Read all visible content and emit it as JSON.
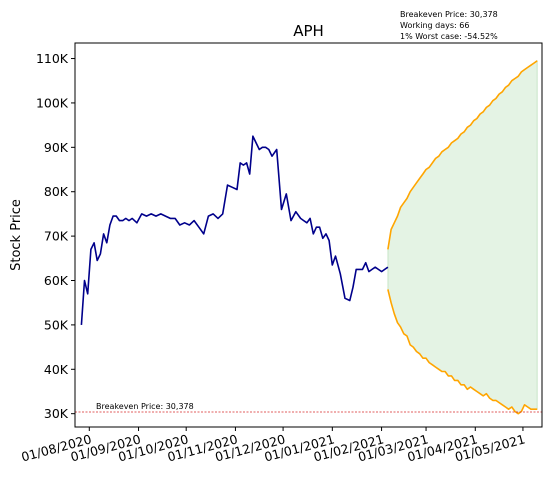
{
  "chart_data": {
    "type": "line",
    "title": "APH",
    "ylabel": "Stock Price",
    "xlabel": "",
    "ylim": [
      27000,
      113500
    ],
    "xlim": [
      "2020-07-23",
      "2021-05-13"
    ],
    "grid": false,
    "yticks": [
      {
        "value": 30000,
        "label": "30K"
      },
      {
        "value": 40000,
        "label": "40K"
      },
      {
        "value": 50000,
        "label": "50K"
      },
      {
        "value": 60000,
        "label": "60K"
      },
      {
        "value": 70000,
        "label": "70K"
      },
      {
        "value": 80000,
        "label": "80K"
      },
      {
        "value": 90000,
        "label": "90K"
      },
      {
        "value": 100000,
        "label": "100K"
      },
      {
        "value": 110000,
        "label": "110K"
      }
    ],
    "xticks": [
      {
        "value": "2020-08-01",
        "label": "01/08/2020"
      },
      {
        "value": "2020-09-01",
        "label": "01/09/2020"
      },
      {
        "value": "2020-10-01",
        "label": "01/10/2020"
      },
      {
        "value": "2020-11-01",
        "label": "01/11/2020"
      },
      {
        "value": "2020-12-01",
        "label": "01/12/2020"
      },
      {
        "value": "2021-01-01",
        "label": "01/01/2021"
      },
      {
        "value": "2021-02-01",
        "label": "01/02/2021"
      },
      {
        "value": "2021-03-01",
        "label": "01/03/2021"
      },
      {
        "value": "2021-04-01",
        "label": "01/04/2021"
      },
      {
        "value": "2021-05-01",
        "label": "01/05/2021"
      }
    ],
    "annotation": {
      "lines": [
        "Breakeven Price: 30,378",
        "Working days: 66",
        "1% Worst case: -54.52%"
      ]
    },
    "breakeven": {
      "value": 30378,
      "label": "Breakeven Price: 30,378",
      "color": "#d62728"
    },
    "history": {
      "color": "#00008b",
      "x": [
        "2020-07-27",
        "2020-07-29",
        "2020-07-31",
        "2020-08-02",
        "2020-08-04",
        "2020-08-06",
        "2020-08-08",
        "2020-08-10",
        "2020-08-12",
        "2020-08-14",
        "2020-08-16",
        "2020-08-18",
        "2020-08-20",
        "2020-08-22",
        "2020-08-24",
        "2020-08-26",
        "2020-08-28",
        "2020-08-31",
        "2020-09-03",
        "2020-09-06",
        "2020-09-09",
        "2020-09-12",
        "2020-09-15",
        "2020-09-18",
        "2020-09-21",
        "2020-09-24",
        "2020-09-27",
        "2020-09-30",
        "2020-10-03",
        "2020-10-06",
        "2020-10-09",
        "2020-10-12",
        "2020-10-15",
        "2020-10-18",
        "2020-10-21",
        "2020-10-24",
        "2020-10-27",
        "2020-10-30",
        "2020-11-02",
        "2020-11-04",
        "2020-11-06",
        "2020-11-08",
        "2020-11-10",
        "2020-11-12",
        "2020-11-14",
        "2020-11-16",
        "2020-11-18",
        "2020-11-20",
        "2020-11-22",
        "2020-11-24",
        "2020-11-27",
        "2020-11-30",
        "2020-12-03",
        "2020-12-06",
        "2020-12-09",
        "2020-12-12",
        "2020-12-14",
        "2020-12-16",
        "2020-12-18",
        "2020-12-20",
        "2020-12-22",
        "2020-12-24",
        "2020-12-26",
        "2020-12-28",
        "2020-12-30",
        "2021-01-01",
        "2021-01-03",
        "2021-01-06",
        "2021-01-09",
        "2021-01-12",
        "2021-01-14",
        "2021-01-16",
        "2021-01-18",
        "2021-01-20",
        "2021-01-22",
        "2021-01-24",
        "2021-01-26",
        "2021-01-28",
        "2021-01-30",
        "2021-02-01",
        "2021-02-03",
        "2021-02-05"
      ],
      "y": [
        50000,
        60000,
        57000,
        67000,
        68500,
        64500,
        66000,
        70500,
        68500,
        72500,
        74500,
        74500,
        73500,
        73500,
        74000,
        73500,
        74000,
        73000,
        75000,
        74500,
        75000,
        74500,
        75000,
        74500,
        74000,
        74000,
        72500,
        73000,
        72500,
        73500,
        72000,
        70500,
        74500,
        75000,
        74000,
        75000,
        81500,
        81000,
        80500,
        86500,
        86000,
        86500,
        84000,
        92500,
        91000,
        89500,
        90000,
        90000,
        89500,
        88000,
        89500,
        76000,
        79500,
        73500,
        75500,
        74000,
        73500,
        73000,
        74000,
        70500,
        72000,
        72000,
        69500,
        70500,
        69000,
        63500,
        65500,
        61500,
        56000,
        55500,
        58500,
        62500,
        62500,
        62500,
        64000,
        62000,
        62500,
        63000,
        62500,
        62000,
        62500,
        63000
      ]
    },
    "forecast_upper": {
      "color": "#ffa500",
      "x": [
        "2021-02-05",
        "2021-02-07",
        "2021-02-09",
        "2021-02-11",
        "2021-02-13",
        "2021-02-15",
        "2021-02-17",
        "2021-02-19",
        "2021-02-21",
        "2021-02-23",
        "2021-02-25",
        "2021-02-27",
        "2021-03-01",
        "2021-03-03",
        "2021-03-05",
        "2021-03-07",
        "2021-03-09",
        "2021-03-11",
        "2021-03-13",
        "2021-03-15",
        "2021-03-17",
        "2021-03-19",
        "2021-03-21",
        "2021-03-23",
        "2021-03-25",
        "2021-03-27",
        "2021-03-29",
        "2021-03-31",
        "2021-04-02",
        "2021-04-04",
        "2021-04-06",
        "2021-04-08",
        "2021-04-10",
        "2021-04-12",
        "2021-04-14",
        "2021-04-16",
        "2021-04-18",
        "2021-04-20",
        "2021-04-22",
        "2021-04-24",
        "2021-04-26",
        "2021-04-28",
        "2021-04-30",
        "2021-05-02",
        "2021-05-04",
        "2021-05-06",
        "2021-05-08",
        "2021-05-10"
      ],
      "y": [
        67000,
        71500,
        73000,
        74500,
        76500,
        77500,
        78500,
        80000,
        81000,
        82000,
        83000,
        84000,
        85000,
        85500,
        86500,
        87500,
        88000,
        89000,
        89500,
        90000,
        91000,
        91500,
        92000,
        93000,
        93500,
        94500,
        95000,
        96000,
        96500,
        97500,
        98000,
        99000,
        99500,
        100500,
        101000,
        102000,
        102500,
        103500,
        104000,
        105000,
        105500,
        106000,
        107000,
        107500,
        108000,
        108500,
        109000,
        109500
      ]
    },
    "forecast_lower": {
      "color": "#ffa500",
      "x": [
        "2021-02-05",
        "2021-02-07",
        "2021-02-09",
        "2021-02-11",
        "2021-02-13",
        "2021-02-15",
        "2021-02-17",
        "2021-02-19",
        "2021-02-21",
        "2021-02-23",
        "2021-02-25",
        "2021-02-27",
        "2021-03-01",
        "2021-03-03",
        "2021-03-05",
        "2021-03-07",
        "2021-03-09",
        "2021-03-11",
        "2021-03-13",
        "2021-03-15",
        "2021-03-17",
        "2021-03-19",
        "2021-03-21",
        "2021-03-23",
        "2021-03-25",
        "2021-03-27",
        "2021-03-29",
        "2021-03-31",
        "2021-04-02",
        "2021-04-04",
        "2021-04-06",
        "2021-04-08",
        "2021-04-10",
        "2021-04-12",
        "2021-04-14",
        "2021-04-16",
        "2021-04-18",
        "2021-04-20",
        "2021-04-22",
        "2021-04-24",
        "2021-04-26",
        "2021-04-28",
        "2021-04-30",
        "2021-05-02",
        "2021-05-04",
        "2021-05-06",
        "2021-05-08",
        "2021-05-10"
      ],
      "y": [
        58000,
        55000,
        52500,
        50500,
        49500,
        48000,
        47500,
        45500,
        45000,
        44000,
        43500,
        42500,
        42500,
        41500,
        41000,
        40500,
        40000,
        39500,
        39500,
        38500,
        38500,
        37500,
        37500,
        36500,
        36500,
        35500,
        36000,
        35500,
        35000,
        34500,
        34000,
        34500,
        33500,
        33000,
        33000,
        32500,
        32000,
        31500,
        31000,
        31500,
        30500,
        30000,
        30500,
        32000,
        31500,
        31000,
        31000,
        31000
      ]
    },
    "band": {
      "color": "#2ca02c",
      "opacity": 0.13
    }
  }
}
